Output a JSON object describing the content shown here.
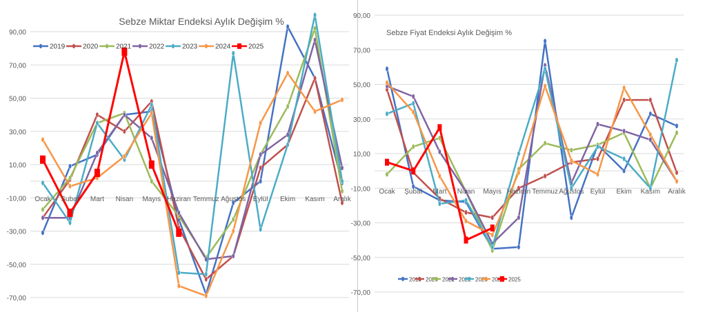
{
  "chart_data": [
    {
      "type": "line",
      "title": "Sebze Miktar Endeksi Aylık Değişim %",
      "xlabel": "",
      "ylabel": "",
      "categories": [
        "Ocak",
        "Şubat",
        "Mart",
        "Nisan",
        "Mayıs",
        "Haziran",
        "Temmuz",
        "Ağustos",
        "Eylül",
        "Ekim",
        "Kasım",
        "Aralık"
      ],
      "yticks": [
        "90,00",
        "70,00",
        "50,00",
        "30,00",
        "10,00",
        "-10,00",
        "-30,00",
        "-50,00",
        "-70,00"
      ],
      "ylim": [
        -70,
        90
      ],
      "grid": true,
      "legend": "top-left",
      "series": [
        {
          "name": "2019",
          "color": "#4472c4",
          "values": [
            -31,
            9,
            16,
            40,
            42,
            -23,
            -68,
            -13,
            0,
            93,
            62,
            -1
          ]
        },
        {
          "name": "2020",
          "color": "#c0504d",
          "values": [
            -22,
            1,
            40,
            30,
            48,
            -28,
            -59,
            -45,
            8,
            22,
            62,
            -13
          ]
        },
        {
          "name": "2021",
          "color": "#9bbb59",
          "values": [
            -17,
            2,
            35,
            41,
            0,
            -21,
            -46,
            -23,
            16,
            45,
            92,
            -6
          ]
        },
        {
          "name": "2022",
          "color": "#8064a2",
          "values": [
            -22,
            -22,
            17,
            40,
            26,
            -19,
            -47,
            -45,
            16,
            28,
            85,
            8
          ]
        },
        {
          "name": "2023",
          "color": "#4bacc6",
          "values": [
            -1,
            -25,
            35,
            13,
            46,
            -55,
            -56,
            77,
            -29,
            22,
            100,
            0
          ]
        },
        {
          "name": "2024",
          "color": "#f79646",
          "values": [
            25,
            -3,
            2,
            15,
            41,
            -63,
            -69,
            -30,
            35,
            65,
            42,
            49
          ]
        },
        {
          "name": "2025",
          "color": "#ff0000",
          "values": [
            13,
            -19,
            5,
            78,
            10,
            -31,
            null,
            null,
            null,
            null,
            null,
            null
          ]
        }
      ]
    },
    {
      "type": "line",
      "title": "Sebze Fiyat Endeksi Aylık Değişim %",
      "xlabel": "",
      "ylabel": "",
      "categories": [
        "Ocak",
        "Şubat",
        "Mart",
        "Nisan",
        "Mayıs",
        "Haziran",
        "Temmuz",
        "Ağustos",
        "Eylül",
        "Ekim",
        "Kasım",
        "Aralık"
      ],
      "yticks": [
        "90,00",
        "70,00",
        "50,00",
        "30,00",
        "10,00",
        "-10,00",
        "-30,00",
        "-50,00",
        "-70,00"
      ],
      "ylim": [
        -70,
        90
      ],
      "grid": true,
      "legend": "bottom-left",
      "series": [
        {
          "name": "2019",
          "color": "#4472c4",
          "values": [
            59,
            -9,
            -17,
            -18,
            -45,
            -44,
            75,
            -27,
            15,
            0,
            33,
            26
          ]
        },
        {
          "name": "2020",
          "color": "#c0504d",
          "values": [
            47,
            -1,
            -16,
            -24,
            -27,
            -10,
            -3,
            5,
            7,
            41,
            41,
            -1
          ]
        },
        {
          "name": "2021",
          "color": "#9bbb59",
          "values": [
            -2,
            14,
            19,
            -12,
            -46,
            1,
            16,
            12,
            15,
            22,
            -10,
            22
          ]
        },
        {
          "name": "2022",
          "color": "#8064a2",
          "values": [
            49,
            43,
            11,
            -12,
            -42,
            -27,
            61,
            -7,
            27,
            23,
            18,
            -6
          ]
        },
        {
          "name": "2023",
          "color": "#4bacc6",
          "values": [
            33,
            39,
            -19,
            -17,
            -44,
            10,
            59,
            -10,
            14,
            7,
            -10,
            64
          ]
        },
        {
          "name": "2024",
          "color": "#f79646",
          "values": [
            51,
            34,
            -3,
            -29,
            -37,
            -1,
            49,
            6,
            -2,
            48,
            21,
            -6
          ]
        },
        {
          "name": "2025",
          "color": "#ff0000",
          "values": [
            5,
            0,
            25,
            -40,
            -33,
            null,
            null,
            null,
            null,
            null,
            null,
            null
          ]
        }
      ]
    }
  ]
}
